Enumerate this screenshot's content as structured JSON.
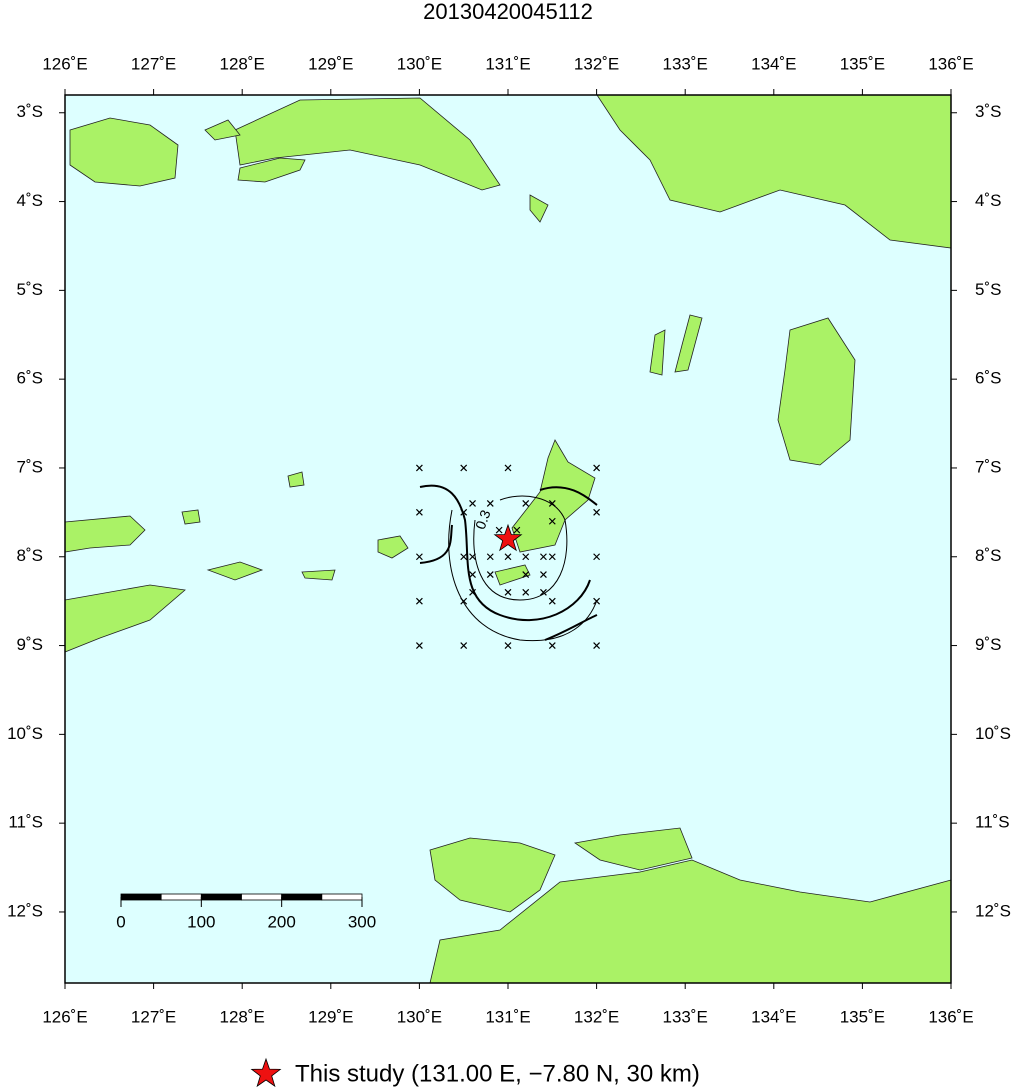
{
  "title": "20130420045112",
  "map": {
    "xlim": [
      126,
      136
    ],
    "ylim": [
      -12.8,
      -2.8
    ],
    "lon_ticks": [
      {
        "value": 126,
        "label": "126˚E"
      },
      {
        "value": 127,
        "label": "127˚E"
      },
      {
        "value": 128,
        "label": "128˚E"
      },
      {
        "value": 129,
        "label": "129˚E"
      },
      {
        "value": 130,
        "label": "130˚E"
      },
      {
        "value": 131,
        "label": "131˚E"
      },
      {
        "value": 132,
        "label": "132˚E"
      },
      {
        "value": 133,
        "label": "133˚E"
      },
      {
        "value": 134,
        "label": "134˚E"
      },
      {
        "value": 135,
        "label": "135˚E"
      },
      {
        "value": 136,
        "label": "136˚E"
      }
    ],
    "lat_ticks": [
      {
        "value": -3,
        "label": "3˚S"
      },
      {
        "value": -4,
        "label": "4˚S"
      },
      {
        "value": -5,
        "label": "5˚S"
      },
      {
        "value": -6,
        "label": "6˚S"
      },
      {
        "value": -7,
        "label": "7˚S"
      },
      {
        "value": -8,
        "label": "8˚S"
      },
      {
        "value": -9,
        "label": "9˚S"
      },
      {
        "value": -10,
        "label": "10˚S"
      },
      {
        "value": -11,
        "label": "11˚S"
      },
      {
        "value": -12,
        "label": "12˚S"
      }
    ],
    "stations": {
      "lon": [
        130,
        130.5,
        131,
        132,
        130.6,
        130.8,
        131.2,
        131.5,
        130,
        130.5,
        131.5,
        132,
        130.9,
        131.1,
        130,
        130.5,
        130.6,
        130.8,
        131,
        131.2,
        131.4,
        131.5,
        132,
        130.6,
        130.8,
        131.2,
        131.4,
        130.6,
        131,
        131.2,
        131.4,
        130,
        130.5,
        131.5,
        132,
        130,
        130.5,
        131,
        131.5,
        132
      ],
      "lat": [
        -7,
        -7,
        -7,
        -7,
        -7.4,
        -7.4,
        -7.4,
        -7.4,
        -7.5,
        -7.5,
        -7.6,
        -7.5,
        -7.7,
        -7.7,
        -8,
        -8,
        -8,
        -8,
        -8,
        -8,
        -8,
        -8,
        -8,
        -8.2,
        -8.2,
        -8.2,
        -8.2,
        -8.4,
        -8.4,
        -8.4,
        -8.4,
        -8.5,
        -8.5,
        -8.5,
        -8.5,
        -9,
        -9,
        -9,
        -9,
        -9
      ]
    },
    "contour_label": "0.3",
    "epicenter": {
      "lon": 131.0,
      "lat": -7.8,
      "color": "#ee1111"
    },
    "scale_bar": {
      "ticks": [
        0,
        100,
        200,
        300
      ],
      "max": 300
    }
  },
  "legend": {
    "label": "This study (131.00 E, −7.80 N, 30 km)"
  }
}
